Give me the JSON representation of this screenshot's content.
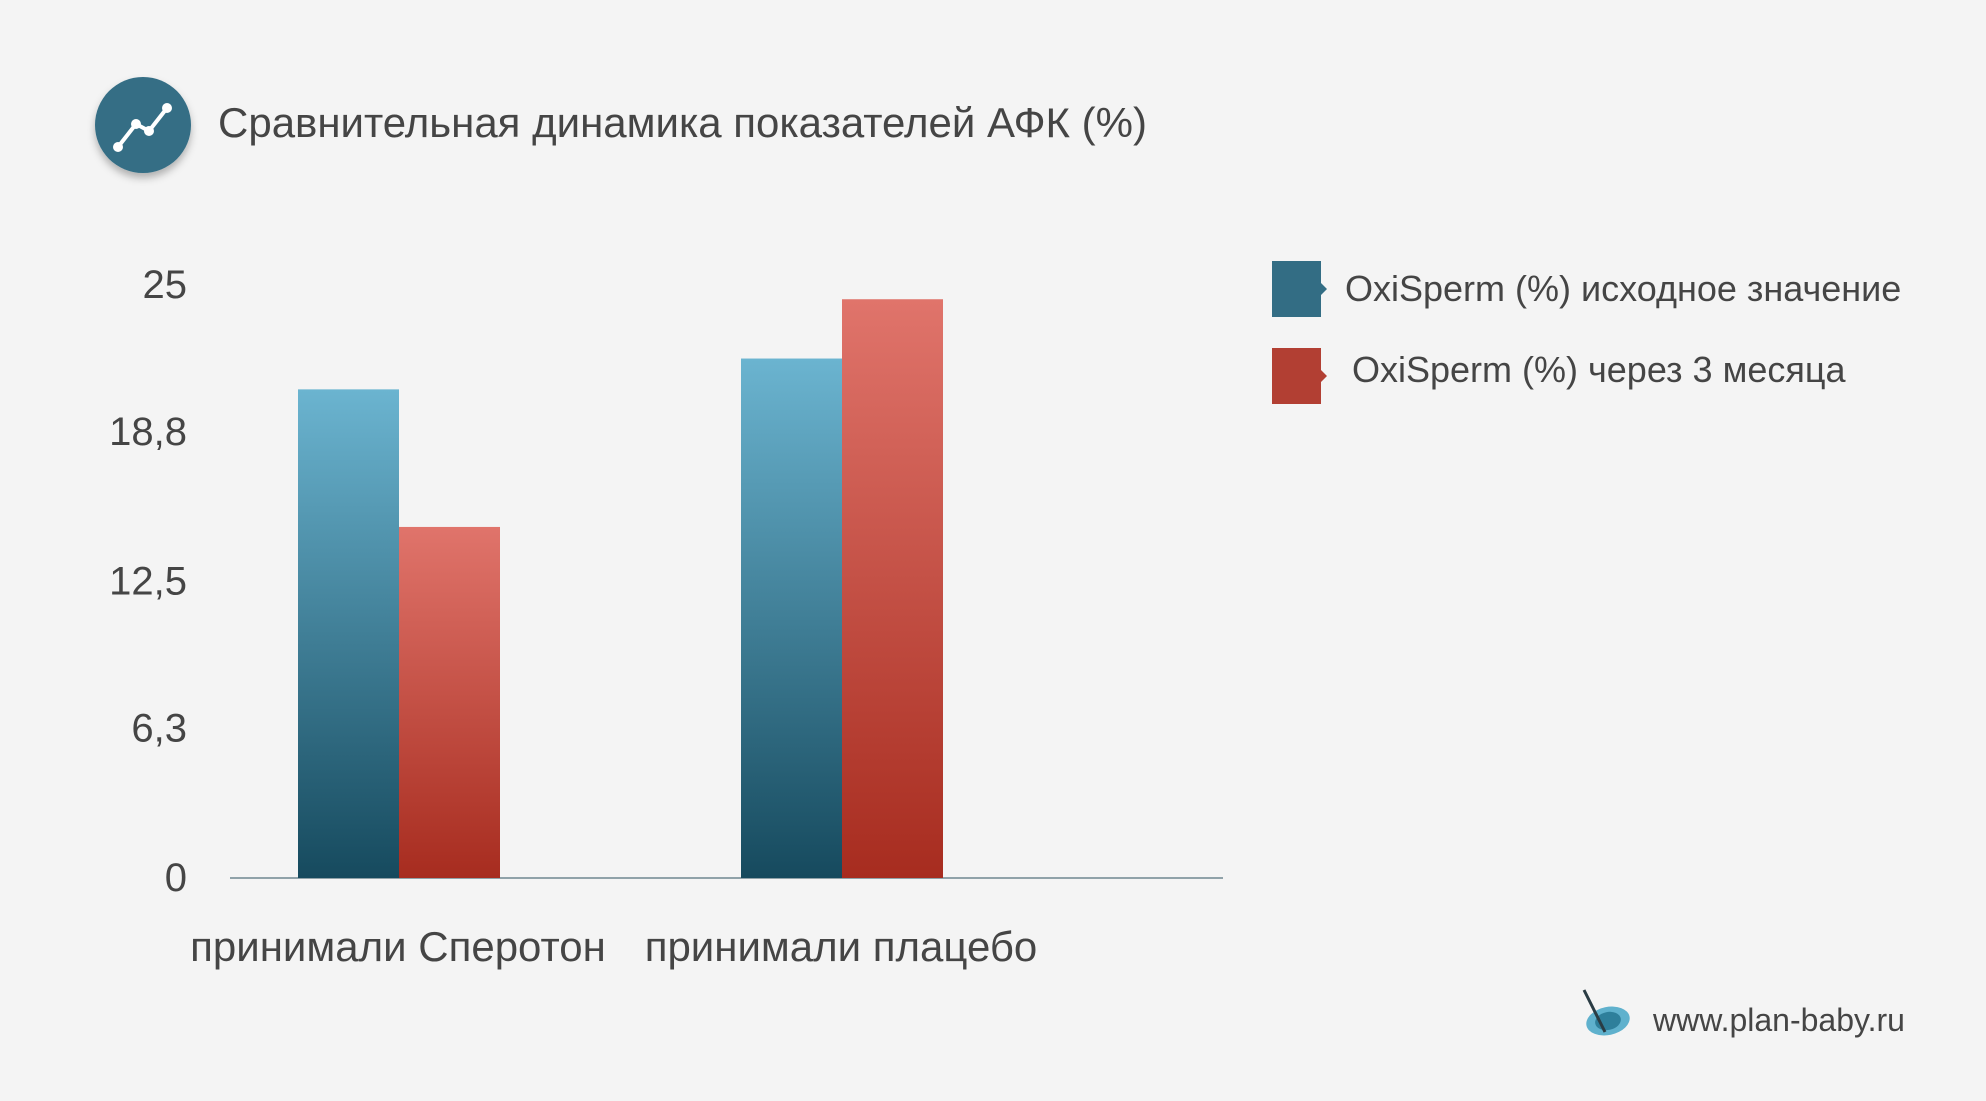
{
  "header": {
    "title": "Сравнительная динамика показателей АФК (%)",
    "icon": "trend-line-icon"
  },
  "legend": {
    "items": [
      {
        "label": "OxiSperm (%) исходное значение",
        "color": "#336d84"
      },
      {
        "label": "OxiSperm (%) через 3 месяца",
        "color": "#b23f33"
      }
    ]
  },
  "footer": {
    "site": "www.plan-baby.ru",
    "icon": "eye-logo-icon"
  },
  "colors": {
    "background": "#f4f4f4",
    "text": "#454545",
    "grid": "#b9c8cc",
    "baseline": "#1e1e1e",
    "series1_top": "#6bb4d0",
    "series1_bottom": "#164a5e",
    "series2_top": "#e0746b",
    "series2_bottom": "#a72c1f"
  },
  "chart_data": {
    "type": "bar",
    "title": "Сравнительная динамика показателей АФК (%)",
    "categories": [
      "принимали Сперотон",
      "принимали плацебо"
    ],
    "series": [
      {
        "name": "OxiSperm (%) исходное значение",
        "values": [
          20.6,
          21.9
        ]
      },
      {
        "name": "OxiSperm (%) через 3 месяца",
        "values": [
          14.8,
          24.4
        ]
      }
    ],
    "yticks": [
      "0",
      "6,3",
      "12,5",
      "18,8",
      "25"
    ],
    "ytick_values": [
      0,
      6.3,
      12.5,
      18.8,
      25
    ],
    "ylim": [
      0,
      25
    ],
    "xlabel": "",
    "ylabel": "",
    "grid": true,
    "legend_position": "right"
  }
}
